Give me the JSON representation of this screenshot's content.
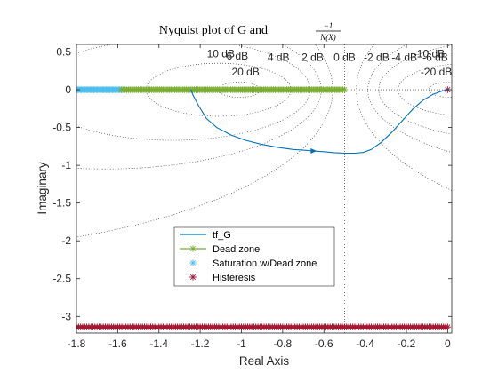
{
  "chart_data": {
    "type": "line",
    "title_main": "Nyquist plot of G and",
    "title_fraction": {
      "numerator": "−1",
      "denominator": "N(X)"
    },
    "xlabel": "Real Axis",
    "ylabel": "Imaginary",
    "xlim": [
      -1.8,
      0.02
    ],
    "ylim": [
      -3.22,
      0.6
    ],
    "xticks": [
      -1.8,
      -1.6,
      -1.4,
      -1.2,
      -1.0,
      -0.8,
      -0.6,
      -0.4,
      -0.2,
      0
    ],
    "xtick_labels": [
      "-1.8",
      "-1.6",
      "-1.4",
      "-1.2",
      "-1",
      "-0.8",
      "-0.6",
      "-0.4",
      "-0.2",
      "0"
    ],
    "yticks": [
      0.5,
      0,
      -0.5,
      -1,
      -1.5,
      -2,
      -2.5,
      -3
    ],
    "ytick_labels": [
      "0.5",
      "0",
      "-0.5",
      "-1",
      "-1.5",
      "-2",
      "-2.5",
      "-3"
    ],
    "grid": "m-circles",
    "m_circle_labels": [
      {
        "text": "10 dB",
        "x": -1.1,
        "y": 0.43
      },
      {
        "text": "6 dB",
        "x": -1.02,
        "y": 0.4
      },
      {
        "text": "20 dB",
        "x": -0.98,
        "y": 0.19
      },
      {
        "text": "4 dB",
        "x": -0.82,
        "y": 0.38
      },
      {
        "text": "2 dB",
        "x": -0.655,
        "y": 0.38
      },
      {
        "text": "0 dB",
        "x": -0.5,
        "y": 0.38
      },
      {
        "text": "-2 dB",
        "x": -0.345,
        "y": 0.38
      },
      {
        "text": "-4 dB",
        "x": -0.21,
        "y": 0.38
      },
      {
        "text": "-6 dB",
        "x": -0.06,
        "y": 0.38
      },
      {
        "text": "-10 dB",
        "x": -0.09,
        "y": 0.43
      },
      {
        "text": "-20 dB",
        "x": -0.055,
        "y": 0.19
      }
    ],
    "series": [
      {
        "name": "tf_G",
        "kind": "line",
        "color": "#0072bd",
        "x": [
          0,
          -0.03,
          -0.07,
          -0.12,
          -0.17,
          -0.22,
          -0.27,
          -0.32,
          -0.37,
          -0.41,
          -0.45,
          -0.5,
          -0.55,
          -0.6,
          -0.65,
          -0.7,
          -0.75,
          -0.82,
          -0.9,
          -0.98,
          -1.05,
          -1.12,
          -1.17,
          -1.21,
          -1.235,
          -1.245
        ],
        "y": [
          0,
          -0.02,
          -0.06,
          -0.14,
          -0.26,
          -0.41,
          -0.56,
          -0.69,
          -0.79,
          -0.83,
          -0.84,
          -0.84,
          -0.833,
          -0.82,
          -0.81,
          -0.8,
          -0.79,
          -0.765,
          -0.725,
          -0.67,
          -0.6,
          -0.5,
          -0.38,
          -0.2,
          -0.07,
          0
        ],
        "arrow_at": {
          "x": -0.66,
          "y": -0.81
        }
      },
      {
        "name": "Dead zone",
        "kind": "markers",
        "marker": "*",
        "color": "#77ac30",
        "x_range": [
          -1.58,
          -0.5
        ],
        "y": 0
      },
      {
        "name": "Saturation w/Dead zone",
        "kind": "markers",
        "marker": "*",
        "color": "#4dbeee",
        "x_range": [
          -1.8,
          -1.58
        ],
        "y": 0
      },
      {
        "name": "Histeresis",
        "kind": "markers",
        "marker": "*",
        "color": "#a2142f",
        "x_range": [
          -1.8,
          0
        ],
        "y": -3.14,
        "extra_point": {
          "x": 0,
          "y": 0
        }
      }
    ],
    "legend_location": "lower-center"
  }
}
